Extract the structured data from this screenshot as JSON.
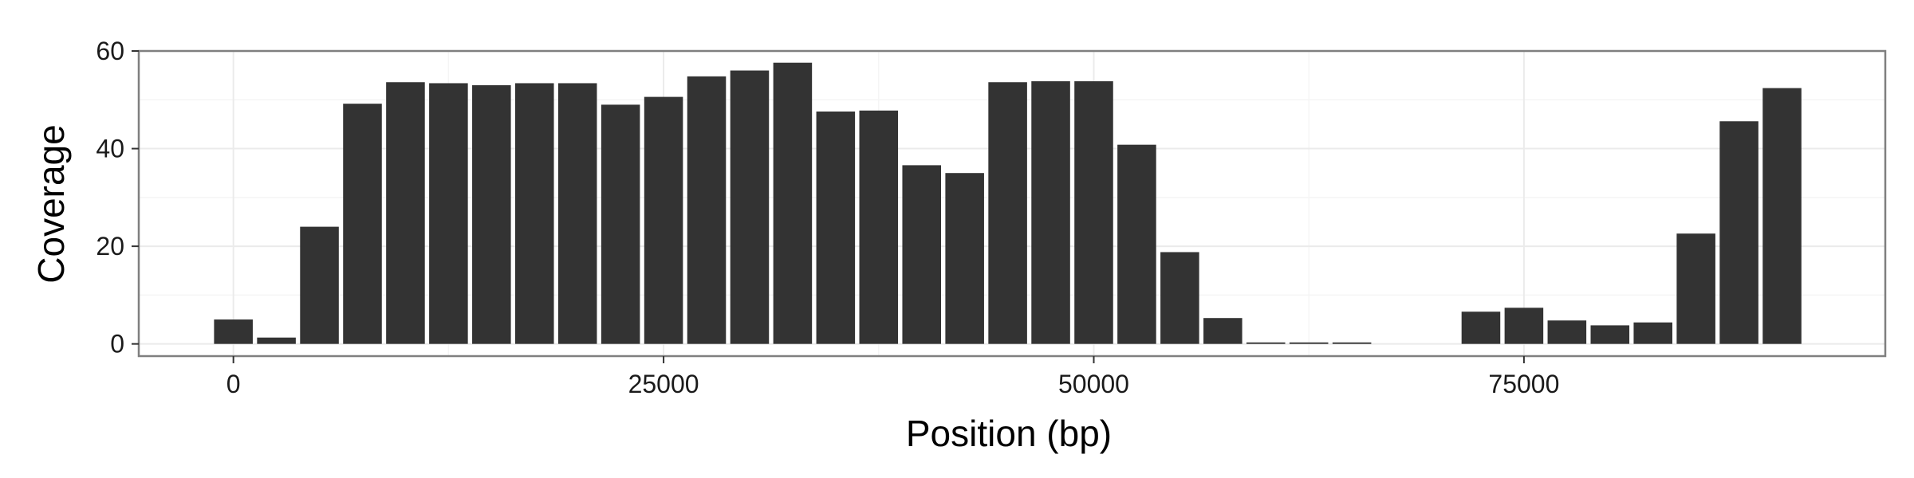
{
  "chart_data": {
    "type": "bar",
    "title": "",
    "xlabel": "Position (bp)",
    "ylabel": "Coverage",
    "xlim": [
      -5500,
      96000
    ],
    "ylim": [
      -2.5,
      60
    ],
    "xticks": [
      0,
      25000,
      50000,
      75000
    ],
    "xtick_labels": [
      "0",
      "25000",
      "50000",
      "75000"
    ],
    "yticks": [
      0,
      20,
      40,
      60
    ],
    "ytick_labels": [
      "0",
      "20",
      "40",
      "60"
    ],
    "grid": true,
    "legend": "none",
    "bin_width": 2500,
    "x": [
      0,
      2500,
      5000,
      7500,
      10000,
      12500,
      15000,
      17500,
      20000,
      22500,
      25000,
      27500,
      30000,
      32500,
      35000,
      37500,
      40000,
      42500,
      45000,
      47500,
      50000,
      52500,
      55000,
      57500,
      60000,
      62500,
      65000,
      67500,
      70000,
      72500,
      75000,
      77500,
      80000,
      82500,
      85000,
      87500,
      90000
    ],
    "values": [
      5.0,
      1.3,
      24.0,
      49.2,
      53.6,
      53.4,
      53.0,
      53.4,
      53.4,
      49.0,
      50.6,
      54.8,
      56.0,
      57.6,
      47.6,
      47.8,
      36.6,
      35.0,
      53.6,
      53.8,
      53.8,
      40.8,
      18.8,
      5.3,
      0.3,
      0.3,
      0.3,
      0,
      0,
      6.6,
      7.4,
      4.8,
      3.8,
      4.4,
      22.6,
      45.6,
      52.4
    ],
    "colors": {
      "bar": "#333333",
      "panel_border": "#7f7f7f",
      "grid_major": "#ebebeb",
      "grid_minor": "#f5f5f5",
      "tick": "#333333"
    }
  }
}
